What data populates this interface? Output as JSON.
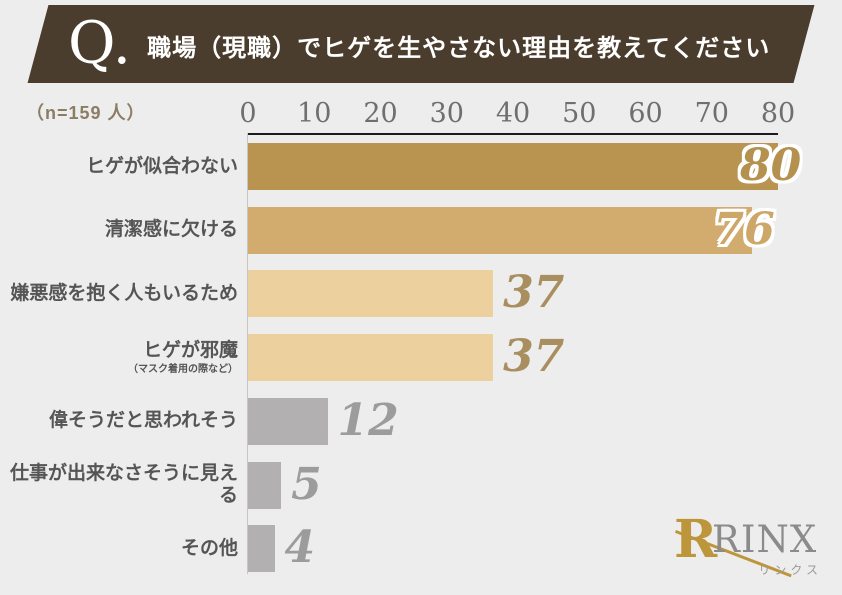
{
  "header": {
    "q_label": "Q.",
    "title": "職場（現職）でヒゲを生やさない理由を教えてください",
    "banner_color": "#4a3d2d",
    "text_color": "#ffffff"
  },
  "sample_size_label": "（n=159 人）",
  "chart_data": {
    "type": "bar",
    "orientation": "horizontal",
    "title": "職場（現職）でヒゲを生やさない理由を教えてください",
    "sample_size": 159,
    "categories": [
      "ヒゲが似合わない",
      "清潔感に欠ける",
      "嫌悪感を抱く人もいるため",
      "ヒゲが邪魔",
      "偉そうだと思われそう",
      "仕事が出来なさそうに見える",
      "その他"
    ],
    "category_sublabels": [
      "",
      "",
      "",
      "（マスク着用の際など）",
      "",
      "",
      ""
    ],
    "values": [
      80,
      76,
      37,
      37,
      12,
      5,
      4
    ],
    "xticks": [
      "0",
      "10",
      "20",
      "30",
      "40",
      "50",
      "60",
      "70",
      "80"
    ],
    "xlim": [
      0,
      80
    ],
    "grid": false,
    "legend": "none",
    "bar_colors": [
      "#b99350",
      "#d2ac6e",
      "#ecd09e",
      "#ecd09e",
      "#b2b0b1",
      "#b2b0b1",
      "#b2b0b1"
    ],
    "value_label_colors": [
      "#b5914f",
      "#cda767",
      "#a98f60",
      "#a98f60",
      "#9c9c9c",
      "#9c9c9c",
      "#9c9c9c"
    ],
    "value_label_outlined": [
      true,
      true,
      false,
      false,
      false,
      false,
      false
    ],
    "axis_line_color": "#1c1c1c",
    "zero_line_color": "#c6c6c6",
    "tick_color": "#6f6f6f"
  },
  "logo": {
    "wordmark": "RINX",
    "symbol": "R",
    "subtext": "リンクス",
    "symbol_color": "#bd963c",
    "wordmark_color": "#8b8b8b"
  }
}
